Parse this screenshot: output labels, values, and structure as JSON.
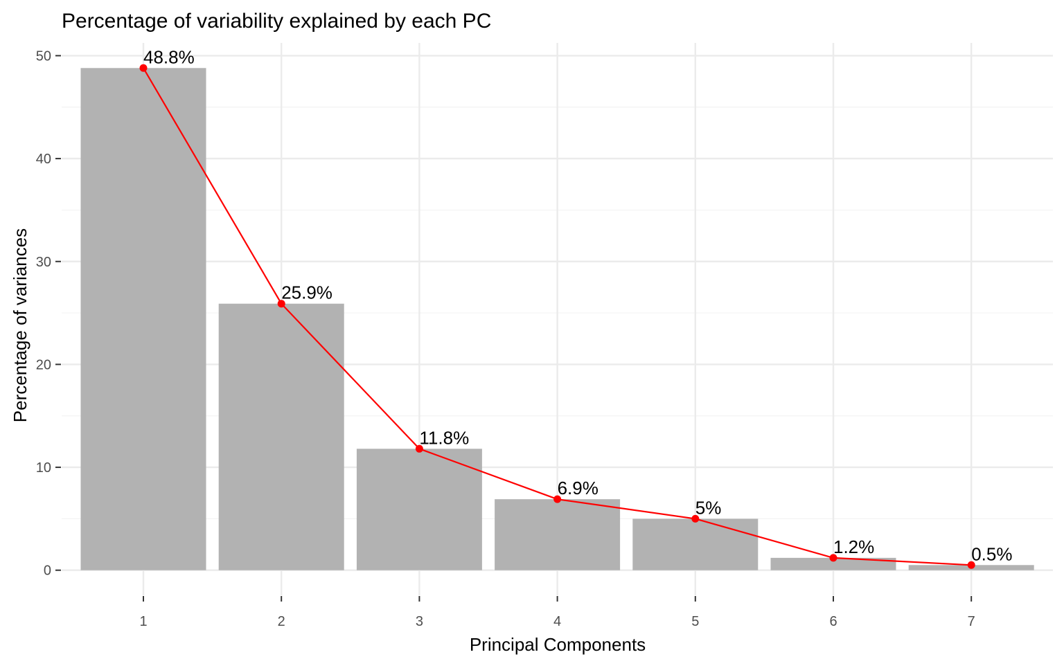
{
  "chart_data": {
    "type": "bar",
    "title": "Percentage of variability explained by each PC",
    "xlabel": "Principal Components",
    "ylabel": "Percentage of variances",
    "categories": [
      "1",
      "2",
      "3",
      "4",
      "5",
      "6",
      "7"
    ],
    "values": [
      48.8,
      25.9,
      11.8,
      6.9,
      5.0,
      1.2,
      0.5
    ],
    "data_labels": [
      "48.8%",
      "25.9%",
      "11.8%",
      "6.9%",
      "5%",
      "1.2%",
      "0.5%"
    ],
    "overlay_line": true,
    "ylim": [
      0,
      50
    ],
    "yticks": [
      0,
      10,
      20,
      30,
      40,
      50
    ],
    "grid": true,
    "legend": "none",
    "colors": {
      "bar": "#b2b2b2",
      "line": "#ff0000",
      "point": "#ff0000",
      "grid_major": "#ebebeb",
      "grid_minor": "#f3f3f3",
      "background": "#ffffff"
    }
  }
}
